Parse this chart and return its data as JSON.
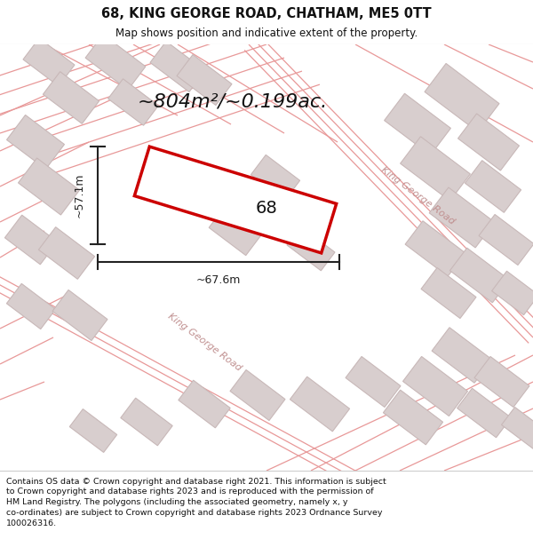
{
  "title": "68, KING GEORGE ROAD, CHATHAM, ME5 0TT",
  "subtitle": "Map shows position and indicative extent of the property.",
  "area_text": "~804m²/~0.199ac.",
  "label_68": "68",
  "dim_width": "~67.6m",
  "dim_height": "~57.1m",
  "road_label_1": "King George Road",
  "road_label_2": "King George Road",
  "footer": "Contains OS data © Crown copyright and database right 2021. This information is subject to Crown copyright and database rights 2023 and is reproduced with the permission of HM Land Registry. The polygons (including the associated geometry, namely x, y co-ordinates) are subject to Crown copyright and database rights 2023 Ordnance Survey 100026316.",
  "map_bg": "#f7f0f0",
  "building_color": "#d8cece",
  "building_edge": "#c8b8b8",
  "road_line_color": "#e89898",
  "highlight_color": "#cc0000",
  "highlight_fill": "#ffffff",
  "dim_color": "#222222",
  "text_color": "#111111",
  "white": "#ffffff",
  "separator": "#cccccc",
  "road_text_color": "#c09090"
}
